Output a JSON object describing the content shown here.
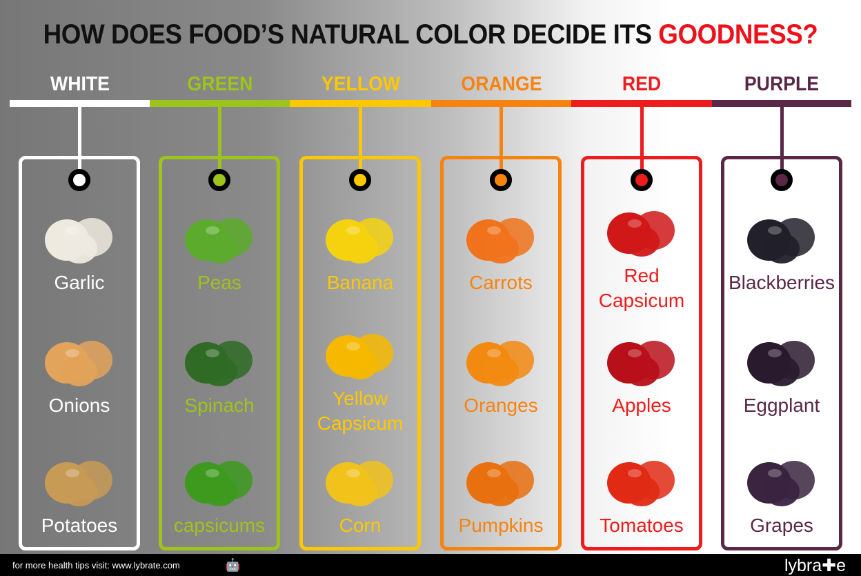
{
  "title": {
    "main": "HOW DOES FOOD’S NATURAL COLOR DECIDE ITS ",
    "highlight": "GOODNESS?"
  },
  "columns": [
    {
      "label": "WHITE",
      "color": "#ffffff",
      "items": [
        {
          "name": "Garlic",
          "fill": "#eeeae0"
        },
        {
          "name": "Onions",
          "fill": "#e2a35a"
        },
        {
          "name": "Potatoes",
          "fill": "#c79a55"
        }
      ]
    },
    {
      "label": "GREEN",
      "color": "#9dc41a",
      "items": [
        {
          "name": "Peas",
          "fill": "#5cab2c"
        },
        {
          "name": "Spinach",
          "fill": "#2f6b25"
        },
        {
          "name": "capsicums",
          "fill": "#3d9a1e"
        }
      ]
    },
    {
      "label": "YELLOW",
      "color": "#fdc800",
      "items": [
        {
          "name": "Banana",
          "fill": "#f5d20f"
        },
        {
          "name": "Yellow Capsicum",
          "fill": "#f6b800"
        },
        {
          "name": "Corn",
          "fill": "#f1c21b"
        }
      ]
    },
    {
      "label": "ORANGE",
      "color": "#f7830f",
      "items": [
        {
          "name": "Carrots",
          "fill": "#f0731c"
        },
        {
          "name": "Oranges",
          "fill": "#f28a12"
        },
        {
          "name": "Pumpkins",
          "fill": "#e8700f"
        }
      ]
    },
    {
      "label": "RED",
      "color": "#ee1c1c",
      "items": [
        {
          "name": "Red Capsicum",
          "fill": "#d01818"
        },
        {
          "name": "Apples",
          "fill": "#b8101a"
        },
        {
          "name": "Tomatoes",
          "fill": "#e02a14"
        }
      ]
    },
    {
      "label": "PURPLE",
      "color": "#5a2747",
      "items": [
        {
          "name": "Blackberries",
          "fill": "#22202a"
        },
        {
          "name": "Eggplant",
          "fill": "#2a1a2e"
        },
        {
          "name": "Grapes",
          "fill": "#3a2440"
        }
      ]
    }
  ],
  "footer": {
    "text": "for more health tips visit: www.lybrate.com",
    "icons": [
      "android-icon",
      "apple-icon"
    ],
    "logo": "lybra✚e"
  }
}
